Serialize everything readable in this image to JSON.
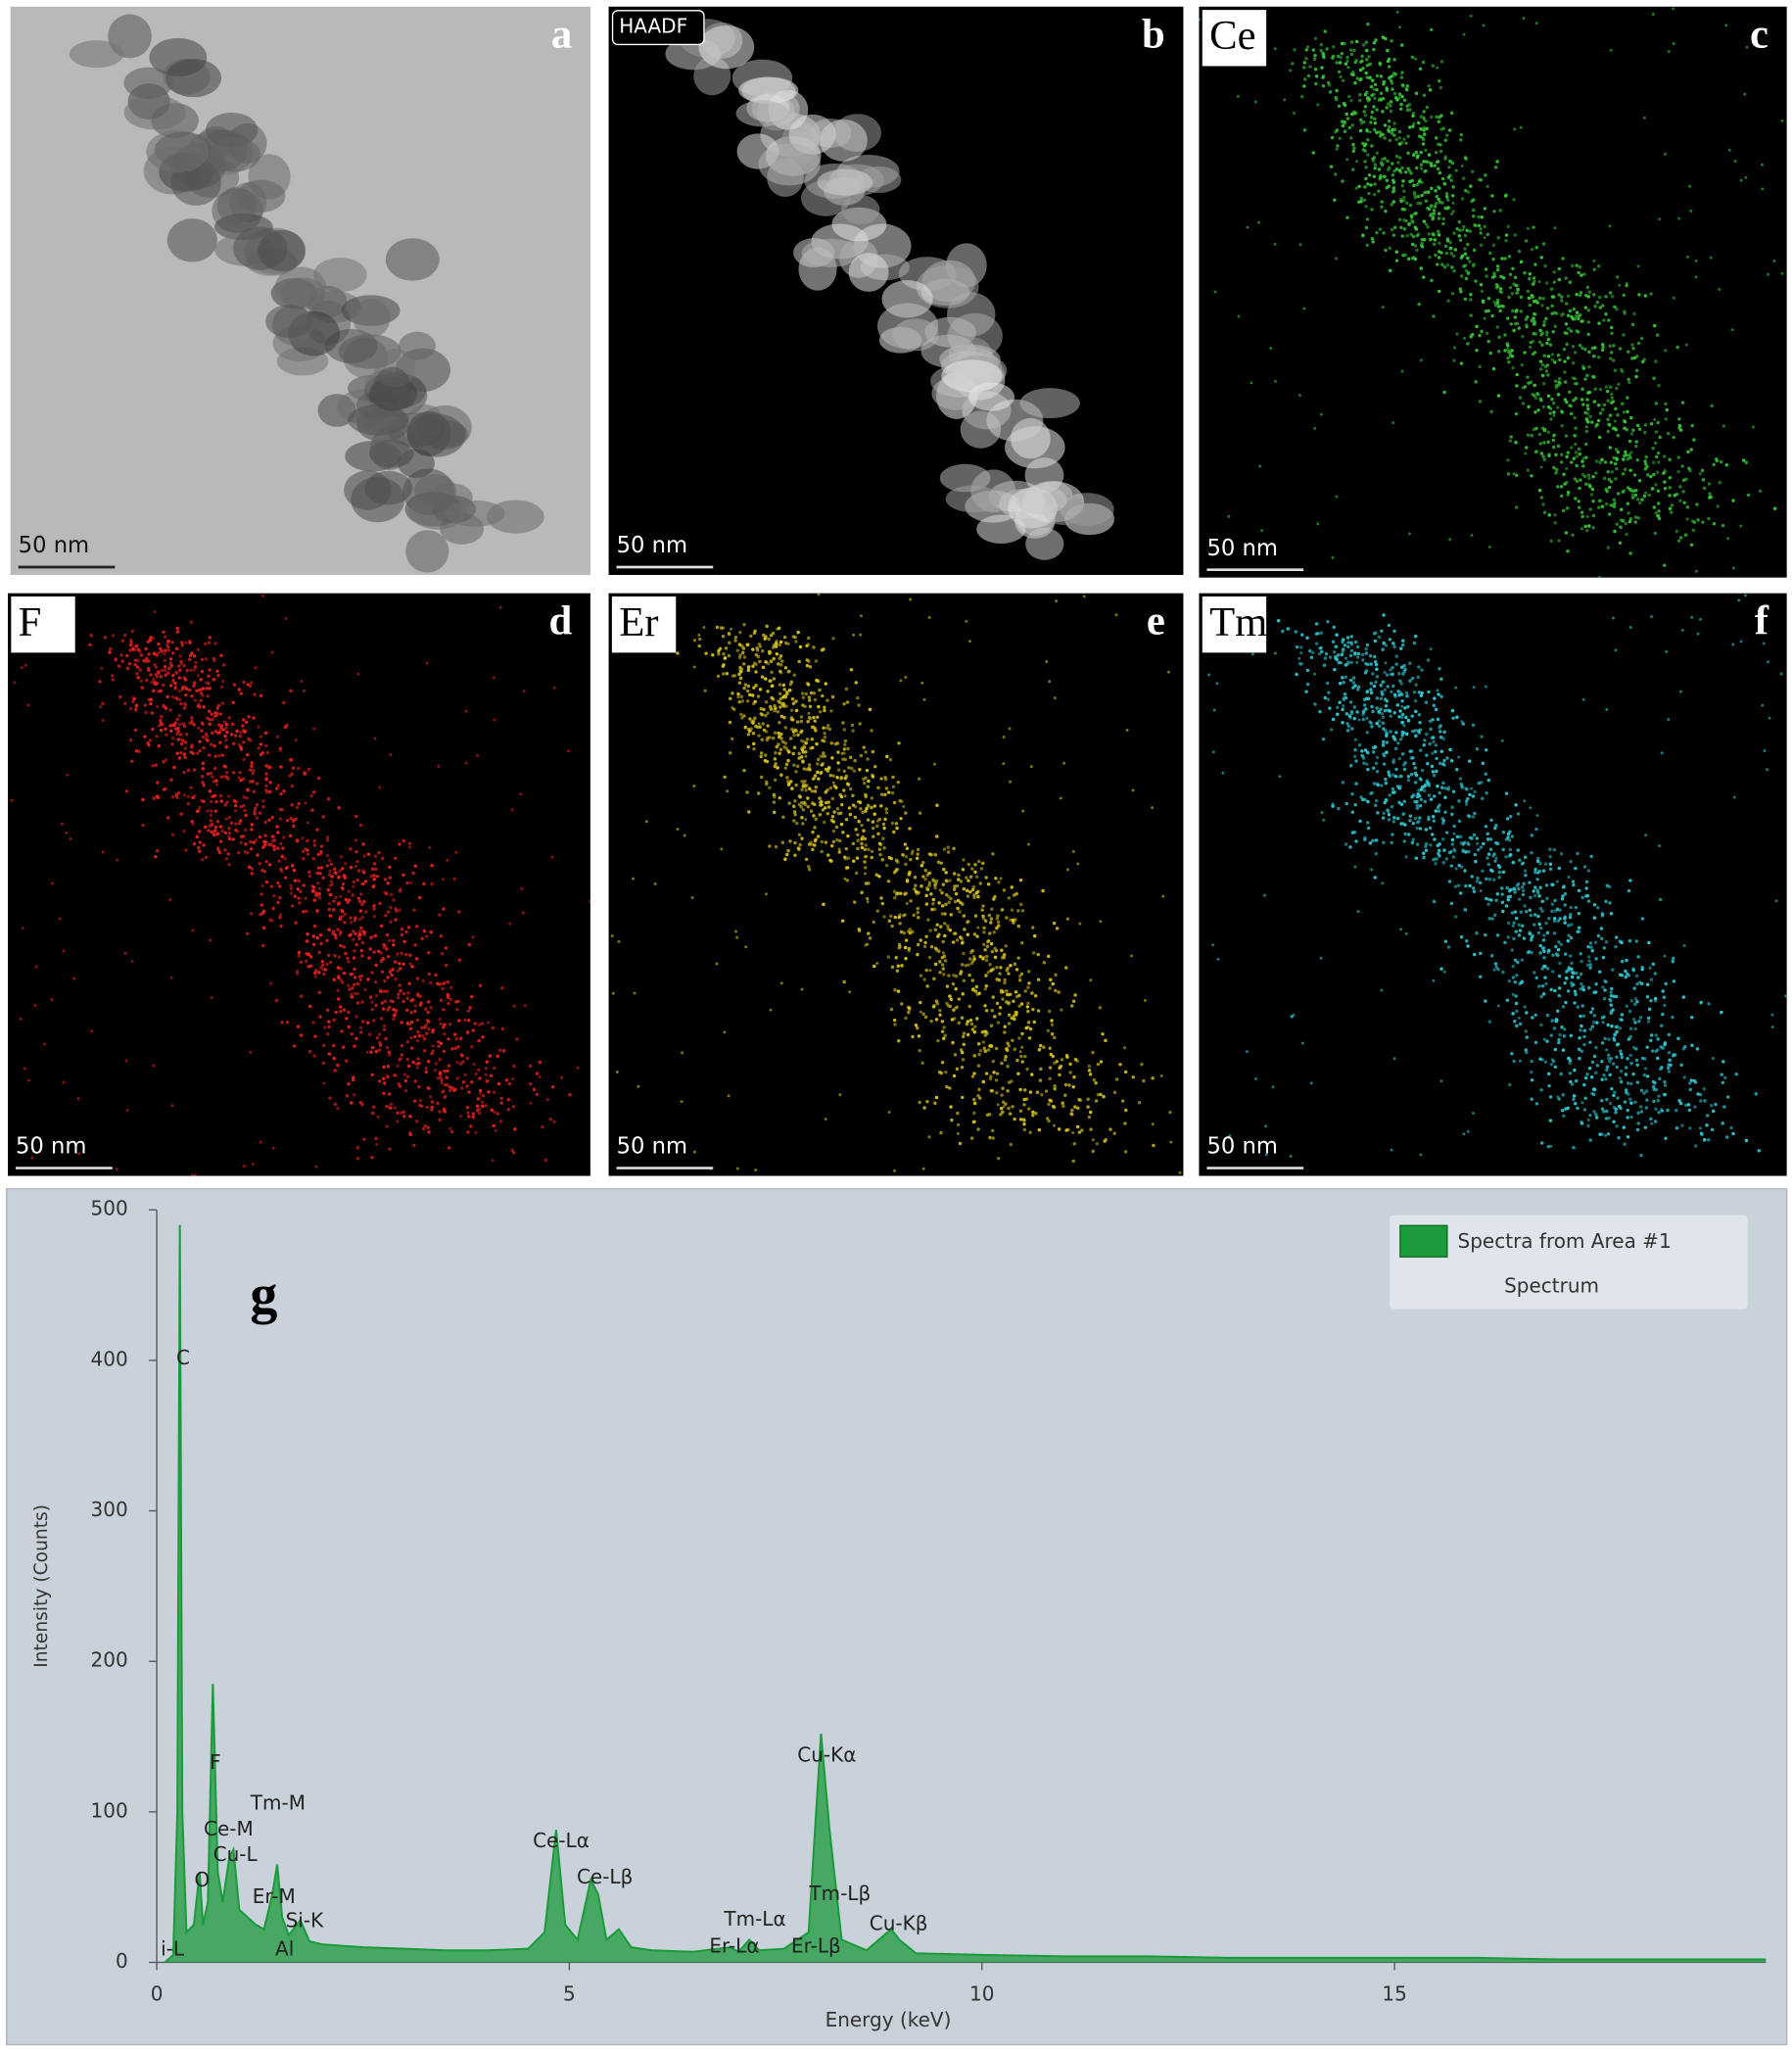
{
  "panels": [
    {
      "letter": "a",
      "scale": "50 nm",
      "kind": "tem"
    },
    {
      "letter": "b",
      "tag": "HAADF",
      "scale": "50 nm",
      "kind": "haadf"
    },
    {
      "letter": "c",
      "tag": "Ce",
      "scale": "50 nm",
      "kind": "map",
      "color": "#39c43a"
    },
    {
      "letter": "d",
      "tag": "F",
      "scale": "50 nm",
      "kind": "map",
      "color": "#e52020"
    },
    {
      "letter": "e",
      "tag": "Er",
      "scale": "50 nm",
      "kind": "map",
      "color": "#d4c21c"
    },
    {
      "letter": "f",
      "tag": "Tm",
      "scale": "50 nm",
      "kind": "map",
      "color": "#2fc6cf"
    }
  ],
  "chart_data": {
    "type": "area",
    "title": "g",
    "xlabel": "Energy (keV)",
    "ylabel": "Intensity (Counts)",
    "xlim": [
      0,
      19.5
    ],
    "ylim": [
      0,
      500
    ],
    "xticks": [
      0,
      5,
      10,
      15
    ],
    "yticks": [
      0,
      100,
      200,
      300,
      400,
      500
    ],
    "legend": "top-right",
    "legend_caption": "Spectrum",
    "x": [
      0.1,
      0.2,
      0.25,
      0.28,
      0.31,
      0.36,
      0.45,
      0.52,
      0.56,
      0.62,
      0.68,
      0.74,
      0.8,
      0.88,
      0.93,
      1.0,
      1.1,
      1.2,
      1.3,
      1.4,
      1.46,
      1.52,
      1.6,
      1.74,
      1.85,
      2.0,
      2.5,
      3.0,
      3.5,
      4.0,
      4.5,
      4.7,
      4.84,
      4.95,
      5.1,
      5.26,
      5.35,
      5.45,
      5.6,
      5.75,
      6.0,
      6.5,
      6.95,
      7.05,
      7.18,
      7.3,
      7.6,
      7.9,
      8.05,
      8.15,
      8.3,
      8.6,
      8.9,
      9.0,
      9.2,
      10,
      11,
      12,
      13,
      14,
      15,
      16,
      17,
      18,
      19,
      19.5
    ],
    "series": [
      {
        "name": "Spectra from Area #1",
        "color": "#1a9a3a",
        "values": [
          0,
          5,
          100,
          490,
          100,
          20,
          25,
          60,
          25,
          40,
          185,
          60,
          40,
          70,
          75,
          35,
          30,
          25,
          22,
          45,
          65,
          30,
          18,
          28,
          14,
          12,
          10,
          9,
          8,
          8,
          9,
          20,
          88,
          25,
          15,
          55,
          45,
          15,
          22,
          10,
          8,
          7,
          10,
          7,
          15,
          8,
          9,
          20,
          152,
          90,
          15,
          8,
          22,
          15,
          6,
          5,
          4,
          4,
          3,
          3,
          3,
          3,
          2,
          2,
          2,
          2
        ]
      }
    ],
    "annotations": [
      {
        "text": "C",
        "x": 0.32,
        "y": 401
      },
      {
        "text": "F",
        "x": 0.71,
        "y": 132
      },
      {
        "text": "O",
        "x": 0.55,
        "y": 54
      },
      {
        "text": "Ce-M",
        "x": 0.87,
        "y": 88
      },
      {
        "text": "Cu-L",
        "x": 0.95,
        "y": 71
      },
      {
        "text": "Tm-M",
        "x": 1.47,
        "y": 105
      },
      {
        "text": "Er-M",
        "x": 1.42,
        "y": 43
      },
      {
        "text": "Si-K",
        "x": 1.79,
        "y": 27
      },
      {
        "text": "Al",
        "x": 1.55,
        "y": 8
      },
      {
        "text": "i-L",
        "x": 0.19,
        "y": 8
      },
      {
        "text": "Ce-Lα",
        "x": 4.9,
        "y": 80
      },
      {
        "text": "Ce-Lβ",
        "x": 5.43,
        "y": 56
      },
      {
        "text": "Tm-Lα",
        "x": 7.25,
        "y": 28
      },
      {
        "text": "Er-Lα",
        "x": 7.0,
        "y": 10
      },
      {
        "text": "Tm-Lβ",
        "x": 8.28,
        "y": 45
      },
      {
        "text": "Er-Lβ",
        "x": 7.99,
        "y": 10
      },
      {
        "text": "Cu-Kα",
        "x": 8.12,
        "y": 137
      },
      {
        "text": "Cu-Kβ",
        "x": 8.99,
        "y": 25
      }
    ]
  }
}
